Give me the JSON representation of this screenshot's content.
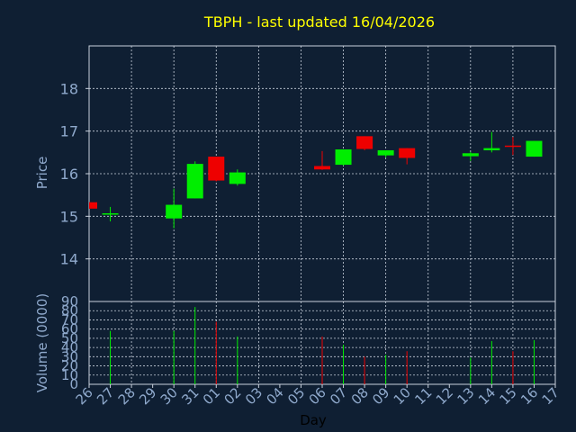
{
  "chart_data": {
    "type": "candlestick",
    "title": "TBPH - last updated 16/04/2026",
    "xlabel": "Day",
    "ylabel_price": "Price",
    "ylabel_volume": "Volume (0000)",
    "price_ylim": [
      13,
      19
    ],
    "price_ticks": [
      14,
      15,
      16,
      17,
      18
    ],
    "volume_ylim": [
      0,
      90
    ],
    "volume_ticks": [
      0,
      10,
      20,
      30,
      40,
      50,
      60,
      70,
      80,
      90
    ],
    "x_tick_labels": [
      "26",
      "27",
      "28",
      "29",
      "30",
      "31",
      "01",
      "02",
      "03",
      "04",
      "05",
      "06",
      "07",
      "08",
      "09",
      "10",
      "11",
      "12",
      "13",
      "14",
      "15",
      "16",
      "17"
    ],
    "grid": true,
    "candles": [
      {
        "day": 0,
        "open": 15.33,
        "high": 15.33,
        "low": 15.18,
        "close": 15.18,
        "volume": 0
      },
      {
        "day": 1,
        "open": 15.07,
        "high": 15.22,
        "low": 14.88,
        "close": 15.07,
        "volume": 58
      },
      {
        "day": 4,
        "open": 14.95,
        "high": 15.65,
        "low": 14.72,
        "close": 15.27,
        "volume": 58
      },
      {
        "day": 5,
        "open": 15.42,
        "high": 16.29,
        "low": 15.42,
        "close": 16.23,
        "volume": 84
      },
      {
        "day": 6,
        "open": 16.4,
        "high": 16.4,
        "low": 15.82,
        "close": 15.84,
        "volume": 68
      },
      {
        "day": 7,
        "open": 15.76,
        "high": 16.1,
        "low": 15.72,
        "close": 16.03,
        "volume": 52
      },
      {
        "day": 11,
        "open": 16.18,
        "high": 16.53,
        "low": 16.09,
        "close": 16.1,
        "volume": 52
      },
      {
        "day": 12,
        "open": 16.21,
        "high": 16.57,
        "low": 16.19,
        "close": 16.57,
        "volume": 43
      },
      {
        "day": 13,
        "open": 16.88,
        "high": 16.88,
        "low": 16.55,
        "close": 16.58,
        "volume": 30
      },
      {
        "day": 14,
        "open": 16.43,
        "high": 16.55,
        "low": 16.38,
        "close": 16.55,
        "volume": 32
      },
      {
        "day": 15,
        "open": 16.6,
        "high": 16.6,
        "low": 16.22,
        "close": 16.37,
        "volume": 36
      },
      {
        "day": 18,
        "open": 16.41,
        "high": 16.51,
        "low": 16.3,
        "close": 16.48,
        "volume": 29
      },
      {
        "day": 19,
        "open": 16.55,
        "high": 16.98,
        "low": 16.5,
        "close": 16.6,
        "volume": 47
      },
      {
        "day": 20,
        "open": 16.66,
        "high": 16.86,
        "low": 16.44,
        "close": 16.64,
        "volume": 36
      },
      {
        "day": 21,
        "open": 16.4,
        "high": 16.77,
        "low": 16.4,
        "close": 16.77,
        "volume": 48
      }
    ],
    "colors": {
      "background": "#0f1f33",
      "up": "#00ee00",
      "down": "#ee0000",
      "title": "#ffff00",
      "axis_text": "#8fa9cc",
      "grid": "#c8d0dc",
      "frame": "#c8d0dc"
    }
  }
}
